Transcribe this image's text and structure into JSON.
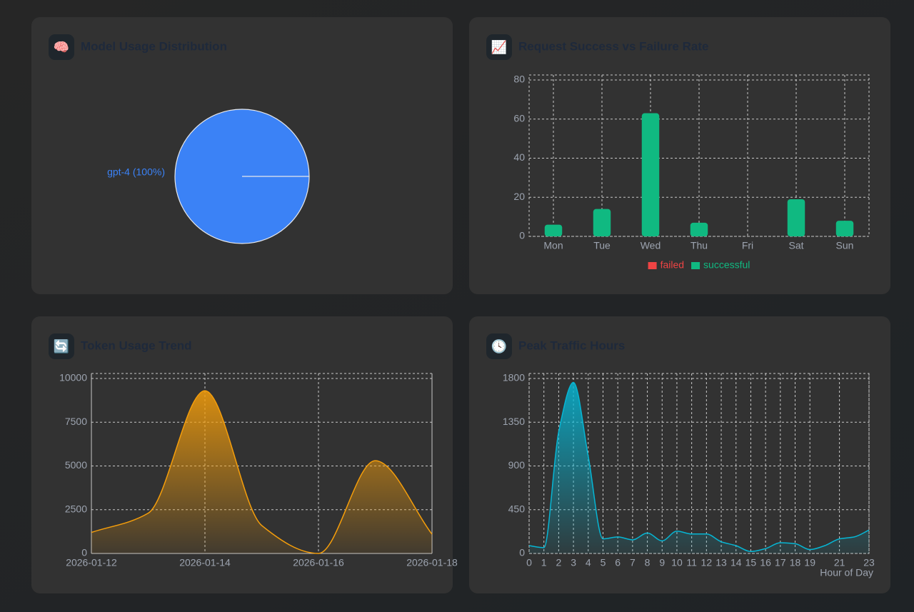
{
  "chart_data": [
    {
      "type": "pie",
      "icon": "🧠",
      "title": "Model Usage Distribution",
      "categories": [
        "gpt-4"
      ],
      "values": [
        100
      ],
      "value_labels": [
        "gpt-4 (100%)"
      ],
      "colors": [
        "#3b82f6"
      ]
    },
    {
      "type": "bar",
      "icon": "📈",
      "title": "Request Success vs Failure Rate",
      "stacked": true,
      "categories": [
        "Mon",
        "Tue",
        "Wed",
        "Thu",
        "Fri",
        "Sat",
        "Sun"
      ],
      "series": [
        {
          "name": "failed",
          "color": "#ef4444",
          "values": [
            0,
            0,
            0,
            0,
            0,
            0,
            0
          ]
        },
        {
          "name": "successful",
          "color": "#10b981",
          "values": [
            6,
            14,
            63,
            7,
            0,
            19,
            8
          ]
        }
      ],
      "ylim": [
        0,
        80
      ],
      "yticks": [
        0,
        20,
        40,
        60,
        80
      ],
      "grid": true,
      "legend": "bottom"
    },
    {
      "type": "area",
      "icon": "🔄",
      "title": "Token Usage Trend",
      "x": [
        "2026-01-12",
        null,
        "2026-01-14",
        null,
        "2026-01-16",
        null,
        "2026-01-18"
      ],
      "values": [
        1200,
        2300,
        9300,
        1600,
        0,
        5300,
        1100
      ],
      "color": "#f59e0b",
      "ylim": [
        0,
        10000
      ],
      "yticks": [
        0,
        2500,
        5000,
        7500,
        10000
      ],
      "grid": true
    },
    {
      "type": "area",
      "icon": "🕓",
      "title": "Peak Traffic Hours",
      "x_label": "Hour of Day",
      "x": [
        0,
        1,
        2,
        3,
        4,
        5,
        6,
        7,
        8,
        9,
        10,
        11,
        12,
        13,
        14,
        15,
        16,
        17,
        18,
        19,
        20,
        21,
        22,
        23
      ],
      "values": [
        80,
        60,
        1250,
        1760,
        1000,
        150,
        170,
        140,
        210,
        130,
        230,
        200,
        200,
        120,
        80,
        20,
        50,
        110,
        100,
        40,
        80,
        150,
        170,
        240
      ],
      "color": "#06b6d4",
      "xlim": [
        0,
        23
      ],
      "xticks": [
        0,
        1,
        2,
        3,
        4,
        5,
        6,
        7,
        8,
        9,
        10,
        11,
        12,
        13,
        14,
        15,
        16,
        17,
        18,
        19,
        21,
        23
      ],
      "ylim": [
        0,
        1800
      ],
      "yticks": [
        0,
        450,
        900,
        1350,
        1800
      ],
      "grid": true
    }
  ]
}
